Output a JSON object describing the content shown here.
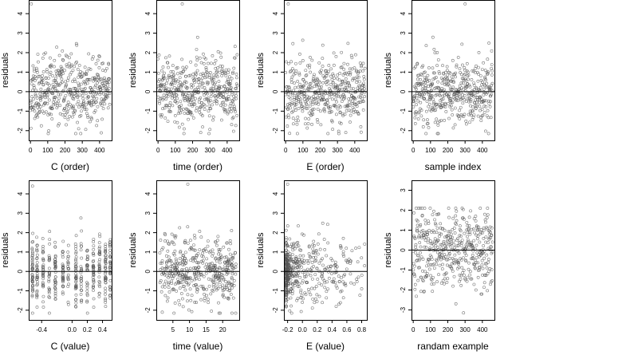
{
  "chart_data": [
    {
      "type": "scatter",
      "ylabel": "residuals",
      "xlabel": "C (order)",
      "xlim": [
        -10,
        470
      ],
      "ylim": [
        -2.5,
        4.7
      ],
      "xticks": [
        0,
        100,
        200,
        300,
        400
      ],
      "xtick_labels": [
        "0",
        "100",
        "200",
        "300",
        "400"
      ],
      "yticks": [
        -2,
        -1,
        0,
        1,
        2,
        3,
        4
      ],
      "ytick_labels": [
        "-2",
        "-1",
        "0",
        "1",
        "2",
        "3",
        "4"
      ],
      "hline": 0,
      "x_kind": "index",
      "seed": 11,
      "n": 460,
      "extreme_points": [
        {
          "x": 5,
          "y": 4.5
        }
      ]
    },
    {
      "type": "scatter",
      "ylabel": "residuals",
      "xlabel": "time (order)",
      "xlim": [
        -10,
        470
      ],
      "ylim": [
        -2.5,
        4.7
      ],
      "xticks": [
        0,
        100,
        200,
        300,
        400
      ],
      "xtick_labels": [
        "0",
        "100",
        "200",
        "300",
        "400"
      ],
      "yticks": [
        -2,
        -1,
        0,
        1,
        2,
        3,
        4
      ],
      "ytick_labels": [
        "-2",
        "-1",
        "0",
        "1",
        "2",
        "3",
        "4"
      ],
      "hline": 0,
      "x_kind": "index",
      "seed": 23,
      "n": 460,
      "extreme_points": [
        {
          "x": 140,
          "y": 4.5
        }
      ]
    },
    {
      "type": "scatter",
      "ylabel": "residuals",
      "xlabel": "E (order)",
      "xlim": [
        -10,
        470
      ],
      "ylim": [
        -2.5,
        4.7
      ],
      "xticks": [
        0,
        100,
        200,
        300,
        400
      ],
      "xtick_labels": [
        "0",
        "100",
        "200",
        "300",
        "400"
      ],
      "yticks": [
        -2,
        -1,
        0,
        1,
        2,
        3,
        4
      ],
      "ytick_labels": [
        "-2",
        "-1",
        "0",
        "1",
        "2",
        "3",
        "4"
      ],
      "hline": 0,
      "x_kind": "index",
      "seed": 37,
      "n": 460,
      "extreme_points": [
        {
          "x": 15,
          "y": 4.5
        }
      ]
    },
    {
      "type": "scatter",
      "ylabel": "residuals",
      "xlabel": "sample index",
      "xlim": [
        -10,
        470
      ],
      "ylim": [
        -2.5,
        4.7
      ],
      "xticks": [
        0,
        100,
        200,
        300,
        400
      ],
      "xtick_labels": [
        "0",
        "100",
        "200",
        "300",
        "400"
      ],
      "yticks": [
        -2,
        -1,
        0,
        1,
        2,
        3,
        4
      ],
      "ytick_labels": [
        "-2",
        "-1",
        "0",
        "1",
        "2",
        "3",
        "4"
      ],
      "hline": 0,
      "x_kind": "index",
      "seed": 41,
      "n": 460,
      "extreme_points": [
        {
          "x": 300,
          "y": 4.5
        }
      ]
    },
    {
      "type": "scatter",
      "ylabel": "residuals",
      "xlabel": "C (value)",
      "xlim": [
        -0.57,
        0.52
      ],
      "ylim": [
        -2.5,
        4.7
      ],
      "xticks": [
        -0.4,
        0.0,
        0.2,
        0.4
      ],
      "xtick_labels": [
        "-0.4",
        "0.0",
        "0.2",
        "0.4"
      ],
      "yticks": [
        -2,
        -1,
        0,
        1,
        2,
        3,
        4
      ],
      "ytick_labels": [
        "-2",
        "-1",
        "0",
        "1",
        "2",
        "3",
        "4"
      ],
      "hline": 0,
      "x_kind": "discrete",
      "x_levels": [
        -0.52,
        -0.46,
        -0.38,
        -0.3,
        -0.22,
        -0.12,
        -0.05,
        0.05,
        0.12,
        0.2,
        0.28,
        0.36,
        0.44,
        0.5
      ],
      "seed": 53,
      "n": 460,
      "extreme_points": [
        {
          "x": -0.52,
          "y": 4.4
        }
      ]
    },
    {
      "type": "scatter",
      "ylabel": "residuals",
      "xlabel": "time (value)",
      "xlim": [
        0,
        25
      ],
      "ylim": [
        -2.5,
        4.7
      ],
      "xticks": [
        5,
        10,
        15,
        20
      ],
      "xtick_labels": [
        "5",
        "10",
        "15",
        "20"
      ],
      "yticks": [
        -2,
        -1,
        0,
        1,
        2,
        3,
        4
      ],
      "ytick_labels": [
        "-2",
        "-1",
        "0",
        "1",
        "2",
        "3",
        "4"
      ],
      "hline": 0,
      "x_kind": "uniform",
      "x_range": [
        1,
        24
      ],
      "seed": 61,
      "n": 460,
      "extreme_points": [
        {
          "x": 9.5,
          "y": 4.5
        }
      ]
    },
    {
      "type": "scatter",
      "ylabel": "residuals",
      "xlabel": "E (value)",
      "xlim": [
        -0.25,
        0.87
      ],
      "ylim": [
        -2.5,
        4.7
      ],
      "xticks": [
        -0.2,
        0.0,
        0.2,
        0.4,
        0.6,
        0.8
      ],
      "xtick_labels": [
        "-0.2",
        "0.0",
        "0.2",
        "0.4",
        "0.6",
        "0.8"
      ],
      "yticks": [
        -2,
        -1,
        0,
        1,
        2,
        3,
        4
      ],
      "ytick_labels": [
        "-2",
        "-1",
        "0",
        "1",
        "2",
        "3",
        "4"
      ],
      "hline": 0,
      "x_kind": "skewed",
      "x_range": [
        -0.22,
        0.85
      ],
      "seed": 71,
      "n": 460,
      "extreme_points": [
        {
          "x": -0.2,
          "y": 4.5
        }
      ]
    },
    {
      "type": "scatter",
      "ylabel": "residuals",
      "xlabel": "randam example",
      "xlim": [
        -10,
        470
      ],
      "ylim": [
        -3.5,
        3.5
      ],
      "xticks": [
        0,
        100,
        200,
        300,
        400
      ],
      "xtick_labels": [
        "0",
        "100",
        "200",
        "300",
        "400"
      ],
      "yticks": [
        -3,
        -2,
        -1,
        0,
        1,
        2,
        3
      ],
      "ytick_labels": [
        "-3",
        "-2",
        "-1",
        "0",
        "1",
        "2",
        "3"
      ],
      "hline": 0,
      "x_kind": "index",
      "seed": 83,
      "n": 460,
      "sd": 1.1,
      "extreme_points": []
    }
  ],
  "colors": {
    "point_stroke": "#555555",
    "axis": "#000000",
    "background": "#ffffff"
  }
}
